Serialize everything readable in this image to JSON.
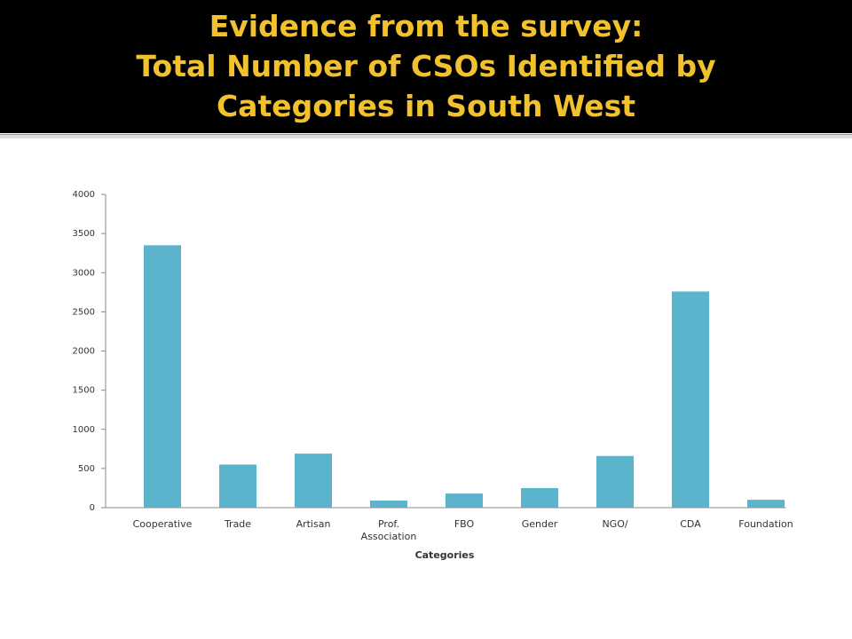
{
  "title_lines": [
    "Evidence from the survey:",
    "Total Number of CSOs Identified by",
    "Categories in South West"
  ],
  "chart_data": {
    "type": "bar",
    "x_label": "Categories",
    "categories": [
      "Cooperative",
      "Trade",
      "Artisan",
      "Prof. Association",
      "FBO",
      "Gender",
      "NGO/",
      "CDA",
      "Foundation"
    ],
    "values": [
      3350,
      550,
      690,
      90,
      180,
      250,
      660,
      2760,
      100
    ],
    "color": "#5bb3cc",
    "ylim": [
      0,
      4000
    ],
    "yticks": [
      0,
      500,
      1000,
      1500,
      2000,
      2500,
      3000,
      3500,
      4000
    ],
    "grid": false
  }
}
